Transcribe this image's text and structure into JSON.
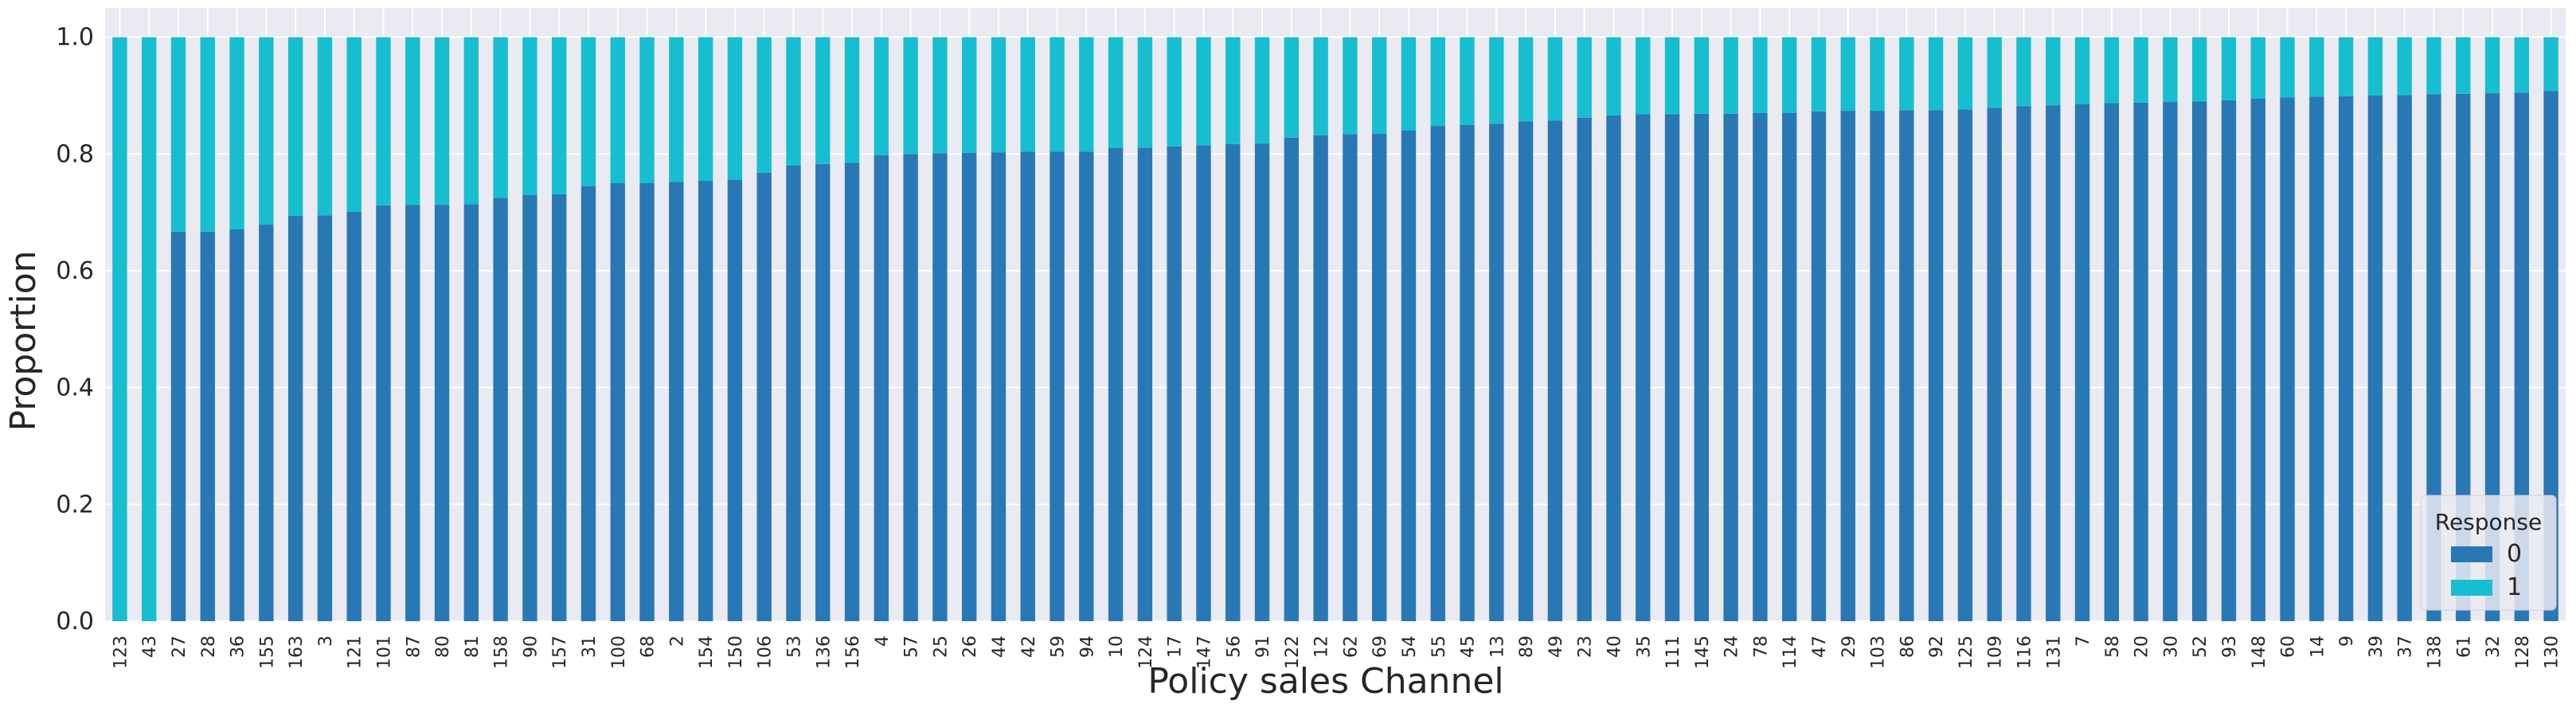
{
  "chart_data": {
    "type": "bar",
    "stacked": true,
    "xlabel": "Policy sales Channel",
    "ylabel": "Proportion",
    "ylim": [
      0,
      1.05
    ],
    "yticks": [
      "0.0",
      "0.2",
      "0.4",
      "0.6",
      "0.8",
      "1.0"
    ],
    "grid": true,
    "legend_title": "Response",
    "legend_position": "lower-right",
    "categories": [
      "123",
      "43",
      "27",
      "28",
      "36",
      "155",
      "163",
      "3",
      "121",
      "101",
      "87",
      "80",
      "81",
      "158",
      "90",
      "157",
      "31",
      "100",
      "68",
      "2",
      "154",
      "150",
      "106",
      "53",
      "136",
      "156",
      "4",
      "57",
      "25",
      "26",
      "44",
      "42",
      "59",
      "94",
      "10",
      "124",
      "17",
      "147",
      "56",
      "91",
      "122",
      "12",
      "62",
      "69",
      "54",
      "55",
      "45",
      "13",
      "89",
      "49",
      "23",
      "40",
      "35",
      "111",
      "145",
      "24",
      "78",
      "114",
      "47",
      "29",
      "103",
      "86",
      "92",
      "125",
      "109",
      "116",
      "131",
      "7",
      "58",
      "20",
      "30",
      "52",
      "93",
      "148",
      "60",
      "14",
      "9",
      "39",
      "37",
      "138",
      "61",
      "32",
      "128",
      "130"
    ],
    "series": [
      {
        "name": "0",
        "color": "#2878b5",
        "values": [
          0.0,
          0.0,
          0.667,
          0.667,
          0.671,
          0.679,
          0.694,
          0.695,
          0.701,
          0.712,
          0.713,
          0.713,
          0.714,
          0.725,
          0.73,
          0.731,
          0.745,
          0.75,
          0.75,
          0.752,
          0.754,
          0.756,
          0.768,
          0.78,
          0.783,
          0.785,
          0.798,
          0.8,
          0.801,
          0.802,
          0.803,
          0.804,
          0.804,
          0.804,
          0.81,
          0.811,
          0.813,
          0.815,
          0.817,
          0.818,
          0.828,
          0.832,
          0.834,
          0.835,
          0.84,
          0.848,
          0.85,
          0.852,
          0.856,
          0.857,
          0.862,
          0.866,
          0.868,
          0.868,
          0.869,
          0.869,
          0.87,
          0.87,
          0.873,
          0.874,
          0.874,
          0.875,
          0.875,
          0.876,
          0.879,
          0.882,
          0.883,
          0.885,
          0.887,
          0.888,
          0.889,
          0.89,
          0.892,
          0.895,
          0.897,
          0.898,
          0.899,
          0.9,
          0.901,
          0.902,
          0.903,
          0.904,
          0.905,
          0.908
        ]
      },
      {
        "name": "1",
        "color": "#17becf",
        "values": [
          1.0,
          1.0,
          0.333,
          0.333,
          0.329,
          0.321,
          0.306,
          0.305,
          0.299,
          0.288,
          0.287,
          0.287,
          0.286,
          0.275,
          0.27,
          0.269,
          0.255,
          0.25,
          0.25,
          0.248,
          0.246,
          0.244,
          0.232,
          0.22,
          0.217,
          0.215,
          0.202,
          0.2,
          0.199,
          0.198,
          0.197,
          0.196,
          0.196,
          0.196,
          0.19,
          0.189,
          0.187,
          0.185,
          0.183,
          0.182,
          0.172,
          0.168,
          0.166,
          0.165,
          0.16,
          0.152,
          0.15,
          0.148,
          0.144,
          0.143,
          0.138,
          0.134,
          0.132,
          0.132,
          0.131,
          0.131,
          0.13,
          0.13,
          0.127,
          0.126,
          0.126,
          0.125,
          0.125,
          0.124,
          0.121,
          0.118,
          0.117,
          0.115,
          0.113,
          0.112,
          0.111,
          0.11,
          0.108,
          0.105,
          0.103,
          0.102,
          0.101,
          0.1,
          0.099,
          0.098,
          0.097,
          0.096,
          0.095,
          0.092
        ]
      }
    ]
  }
}
